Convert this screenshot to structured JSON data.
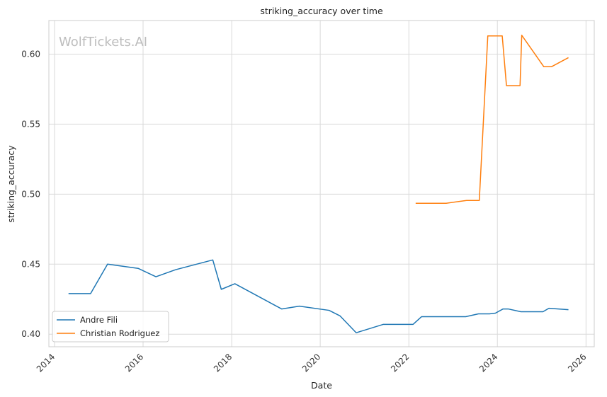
{
  "chart_data": {
    "type": "line",
    "title": "striking_accuracy over time",
    "xlabel": "Date",
    "ylabel": "striking_accuracy",
    "watermark": "WolfTickets.AI",
    "xlim": [
      "2013-11-15",
      "2026-03-10"
    ],
    "ylim": [
      0.391,
      0.624
    ],
    "x_ticks": [
      "2014",
      "2016",
      "2018",
      "2020",
      "2022",
      "2024",
      "2026"
    ],
    "y_ticks": [
      "0.40",
      "0.45",
      "0.50",
      "0.55",
      "0.60"
    ],
    "grid": true,
    "legend_position": "lower-left",
    "series": [
      {
        "name": "Andre Fili",
        "color": "#1f77b4",
        "points": [
          [
            "2014-04-26",
            0.429
          ],
          [
            "2014-10-25",
            0.429
          ],
          [
            "2015-03-14",
            0.45
          ],
          [
            "2015-11-21",
            0.447
          ],
          [
            "2016-04-16",
            0.441
          ],
          [
            "2016-09-24",
            0.446
          ],
          [
            "2017-07-29",
            0.453
          ],
          [
            "2017-10-07",
            0.432
          ],
          [
            "2018-01-27",
            0.436
          ],
          [
            "2019-02-17",
            0.418
          ],
          [
            "2019-07-13",
            0.42
          ],
          [
            "2020-03-14",
            0.417
          ],
          [
            "2020-06-13",
            0.413
          ],
          [
            "2020-10-24",
            0.401
          ],
          [
            "2021-06-05",
            0.407
          ],
          [
            "2022-02-05",
            0.407
          ],
          [
            "2022-04-16",
            0.4125
          ],
          [
            "2023-04-15",
            0.4125
          ],
          [
            "2023-07-29",
            0.4145
          ],
          [
            "2023-10-28",
            0.4145
          ],
          [
            "2023-12-16",
            0.415
          ],
          [
            "2024-02-17",
            0.418
          ],
          [
            "2024-03-30",
            0.418
          ],
          [
            "2024-07-13",
            0.416
          ],
          [
            "2025-01-11",
            0.416
          ],
          [
            "2025-03-01",
            0.4185
          ],
          [
            "2025-08-09",
            0.4175
          ]
        ]
      },
      {
        "name": "Christian Rodriguez",
        "color": "#ff7f0e",
        "points": [
          [
            "2022-02-26",
            0.4935
          ],
          [
            "2022-11-05",
            0.4935
          ],
          [
            "2023-04-22",
            0.4955
          ],
          [
            "2023-08-05",
            0.4955
          ],
          [
            "2023-10-14",
            0.613
          ],
          [
            "2024-02-10",
            0.613
          ],
          [
            "2024-03-16",
            0.5775
          ],
          [
            "2024-07-06",
            0.5775
          ],
          [
            "2024-07-20",
            0.6135
          ],
          [
            "2025-01-18",
            0.591
          ],
          [
            "2025-03-22",
            0.591
          ],
          [
            "2025-08-09",
            0.5975
          ]
        ]
      }
    ]
  }
}
